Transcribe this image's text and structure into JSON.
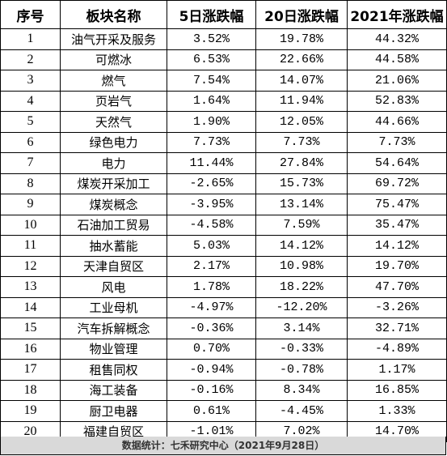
{
  "table": {
    "headers": [
      "序号",
      "板块名称",
      "5日涨跌幅",
      "20日涨跌幅",
      "2021年涨跌幅"
    ],
    "rows": [
      [
        "1",
        "油气开采及服务",
        "3.52%",
        "19.78%",
        "44.32%"
      ],
      [
        "2",
        "可燃冰",
        "6.53%",
        "22.66%",
        "44.58%"
      ],
      [
        "3",
        "燃气",
        "7.54%",
        "14.07%",
        "21.06%"
      ],
      [
        "4",
        "页岩气",
        "1.64%",
        "11.94%",
        "52.83%"
      ],
      [
        "5",
        "天然气",
        "1.90%",
        "12.05%",
        "44.66%"
      ],
      [
        "6",
        "绿色电力",
        "7.73%",
        "7.73%",
        "7.73%"
      ],
      [
        "7",
        "电力",
        "11.44%",
        "27.84%",
        "54.64%"
      ],
      [
        "8",
        "煤炭开采加工",
        "-2.65%",
        "15.73%",
        "69.72%"
      ],
      [
        "9",
        "煤炭概念",
        "-3.95%",
        "13.14%",
        "75.47%"
      ],
      [
        "10",
        "石油加工贸易",
        "-4.58%",
        "7.59%",
        "35.47%"
      ],
      [
        "11",
        "抽水蓄能",
        "5.03%",
        "14.12%",
        "14.12%"
      ],
      [
        "12",
        "天津自贸区",
        "2.17%",
        "10.98%",
        "19.70%"
      ],
      [
        "13",
        "风电",
        "1.78%",
        "18.22%",
        "47.70%"
      ],
      [
        "14",
        "工业母机",
        "-4.97%",
        "-12.20%",
        "-3.26%"
      ],
      [
        "15",
        "汽车拆解概念",
        "-0.36%",
        "3.14%",
        "32.71%"
      ],
      [
        "16",
        "物业管理",
        "0.70%",
        "-0.33%",
        "-4.89%"
      ],
      [
        "17",
        "租售同权",
        "-0.94%",
        "-0.78%",
        "1.17%"
      ],
      [
        "18",
        "海工装备",
        "-0.16%",
        "8.34%",
        "16.85%"
      ],
      [
        "19",
        "厨卫电器",
        "0.61%",
        "-4.45%",
        "1.33%"
      ],
      [
        "20",
        "福建自贸区",
        "-1.01%",
        "7.02%",
        "14.70%"
      ]
    ]
  },
  "footer": {
    "text": "数据统计：七禾研究中心（2021年9月28日）"
  },
  "colors": {
    "footer_bg": "#d9d9d9",
    "border": "#000000"
  }
}
